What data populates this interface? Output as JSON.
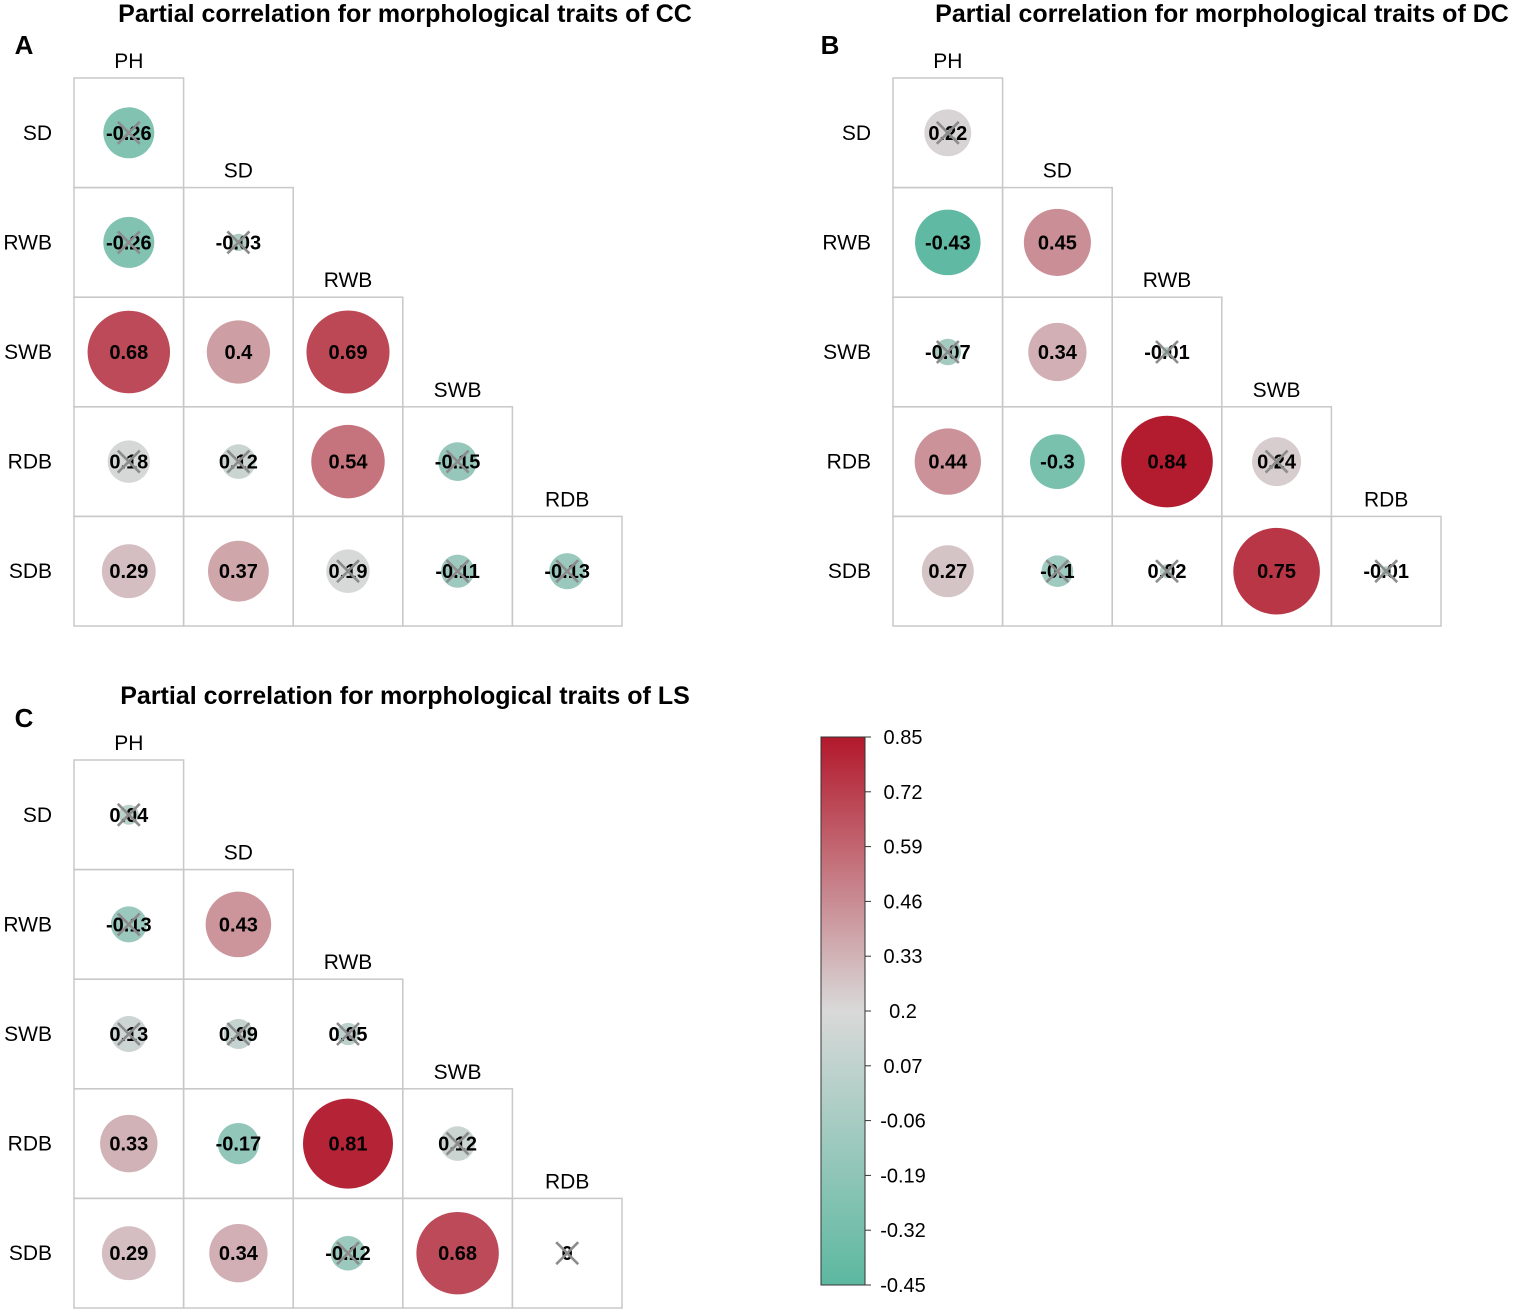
{
  "chart_data": [
    {
      "type": "heatmap",
      "panel": "A",
      "title": "Partial correlation for morphological traits of CC",
      "variables": [
        "PH",
        "SD",
        "RWB",
        "SWB",
        "RDB",
        "SDB"
      ],
      "column_labels": [
        "PH",
        "SD",
        "RWB",
        "SWB",
        "RDB"
      ],
      "row_labels": [
        "SD",
        "RWB",
        "SWB",
        "RDB",
        "SDB"
      ],
      "values": [
        [
          -0.26
        ],
        [
          -0.26,
          -0.03
        ],
        [
          0.68,
          0.4,
          0.69
        ],
        [
          0.18,
          0.12,
          0.54,
          -0.15
        ],
        [
          0.29,
          0.37,
          0.19,
          -0.11,
          -0.13
        ]
      ],
      "value_labels": [
        [
          "-0.26"
        ],
        [
          "-0.26",
          "-0.03"
        ],
        [
          "0.68",
          "0.4",
          "0.69"
        ],
        [
          "0.18",
          "0.12",
          "0.54",
          "-0.15"
        ],
        [
          "0.29",
          "0.37",
          "0.19",
          "-0.11",
          "-0.13"
        ]
      ],
      "not_significant": [
        [
          true
        ],
        [
          true,
          true
        ],
        [
          false,
          false,
          false
        ],
        [
          true,
          true,
          false,
          true
        ],
        [
          false,
          false,
          true,
          true,
          true
        ]
      ]
    },
    {
      "type": "heatmap",
      "panel": "B",
      "title": "Partial correlation for morphological traits of DC",
      "variables": [
        "PH",
        "SD",
        "RWB",
        "SWB",
        "RDB",
        "SDB"
      ],
      "column_labels": [
        "PH",
        "SD",
        "RWB",
        "SWB",
        "RDB"
      ],
      "row_labels": [
        "SD",
        "RWB",
        "SWB",
        "RDB",
        "SDB"
      ],
      "values": [
        [
          0.22
        ],
        [
          -0.43,
          0.45
        ],
        [
          -0.07,
          0.34,
          -0.01
        ],
        [
          0.44,
          -0.3,
          0.84,
          0.24
        ],
        [
          0.27,
          -0.1,
          0.02,
          0.75,
          -0.01
        ]
      ],
      "value_labels": [
        [
          "0.22"
        ],
        [
          "-0.43",
          "0.45"
        ],
        [
          "-0.07",
          "0.34",
          "-0.01"
        ],
        [
          "0.44",
          "-0.3",
          "0.84",
          "0.24"
        ],
        [
          "0.27",
          "-0.1",
          "0.02",
          "0.75",
          "-0.01"
        ]
      ],
      "not_significant": [
        [
          true
        ],
        [
          false,
          false
        ],
        [
          true,
          false,
          true
        ],
        [
          false,
          false,
          false,
          true
        ],
        [
          false,
          true,
          true,
          false,
          true
        ]
      ]
    },
    {
      "type": "heatmap",
      "panel": "C",
      "title": "Partial correlation for morphological traits of LS",
      "variables": [
        "PH",
        "SD",
        "RWB",
        "SWB",
        "RDB",
        "SDB"
      ],
      "column_labels": [
        "PH",
        "SD",
        "RWB",
        "SWB",
        "RDB"
      ],
      "row_labels": [
        "SD",
        "RWB",
        "SWB",
        "RDB",
        "SDB"
      ],
      "values": [
        [
          0.04
        ],
        [
          -0.13,
          0.43
        ],
        [
          0.13,
          0.09,
          0.05
        ],
        [
          0.33,
          -0.17,
          0.81,
          0.12
        ],
        [
          0.29,
          0.34,
          -0.12,
          0.68,
          0
        ]
      ],
      "value_labels": [
        [
          "0.04"
        ],
        [
          "-0.13",
          "0.43"
        ],
        [
          "0.13",
          "0.09",
          "0.05"
        ],
        [
          "0.33",
          "-0.17",
          "0.81",
          "0.12"
        ],
        [
          "0.29",
          "0.34",
          "-0.12",
          "0.68",
          "0"
        ]
      ],
      "not_significant": [
        [
          true
        ],
        [
          true,
          false
        ],
        [
          true,
          true,
          true
        ],
        [
          false,
          false,
          false,
          true
        ],
        [
          false,
          false,
          true,
          false,
          true
        ]
      ]
    }
  ],
  "colorbar": {
    "min": -0.45,
    "max": 0.85,
    "ticks": [
      "0.85",
      "0.72",
      "0.59",
      "0.46",
      "0.33",
      "0.2",
      "0.07",
      "-0.06",
      "-0.19",
      "-0.32",
      "-0.45"
    ],
    "colors": {
      "low": "#5CB8A0",
      "mid": "#D9D9D9",
      "high": "#B2182B"
    }
  },
  "style": {
    "grid_color": "#C8C8C8",
    "cross_color": "#8C8C8C",
    "text_color": "#000000"
  }
}
